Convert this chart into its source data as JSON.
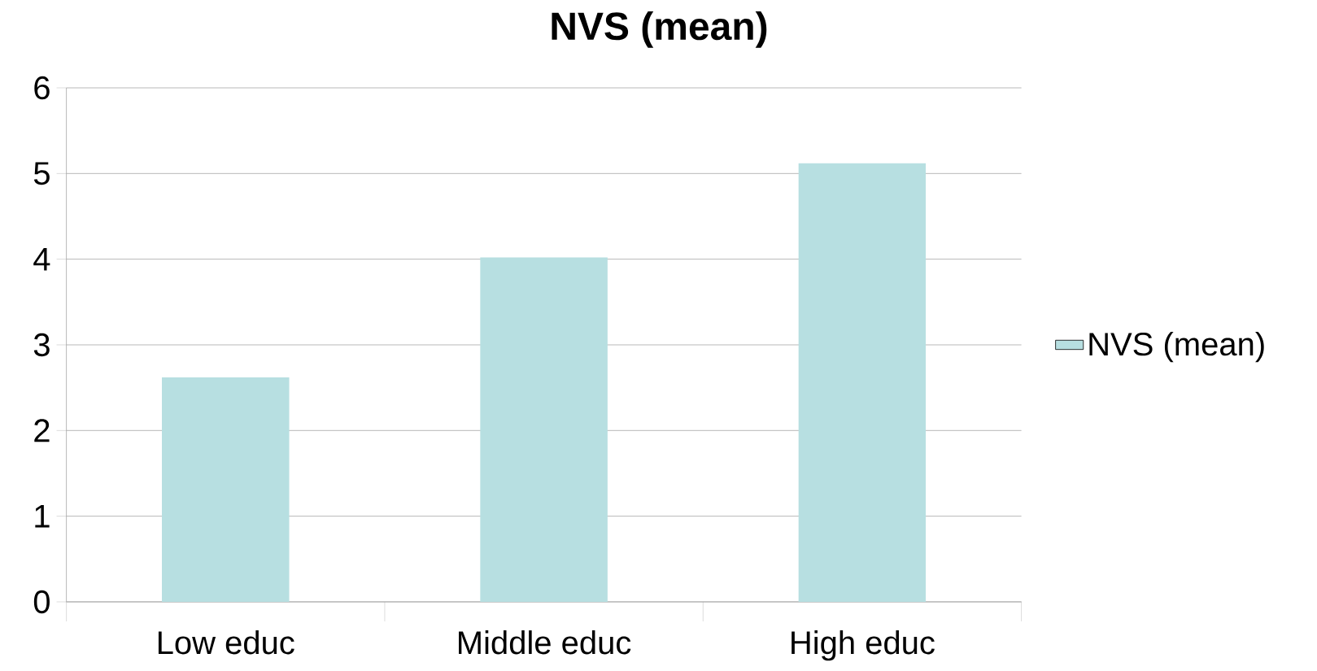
{
  "chart_data": {
    "type": "bar",
    "title": "NVS (mean)",
    "categories": [
      "Low educ",
      "Middle educ",
      "High educ"
    ],
    "series": [
      {
        "name": "NVS (mean)",
        "color": "#b7dfe1",
        "values": [
          2.62,
          4.02,
          5.12
        ]
      }
    ],
    "ylim": [
      0,
      6
    ],
    "yticks": [
      0,
      1,
      2,
      3,
      4,
      5,
      6
    ],
    "grid": "y",
    "legend": "right"
  }
}
